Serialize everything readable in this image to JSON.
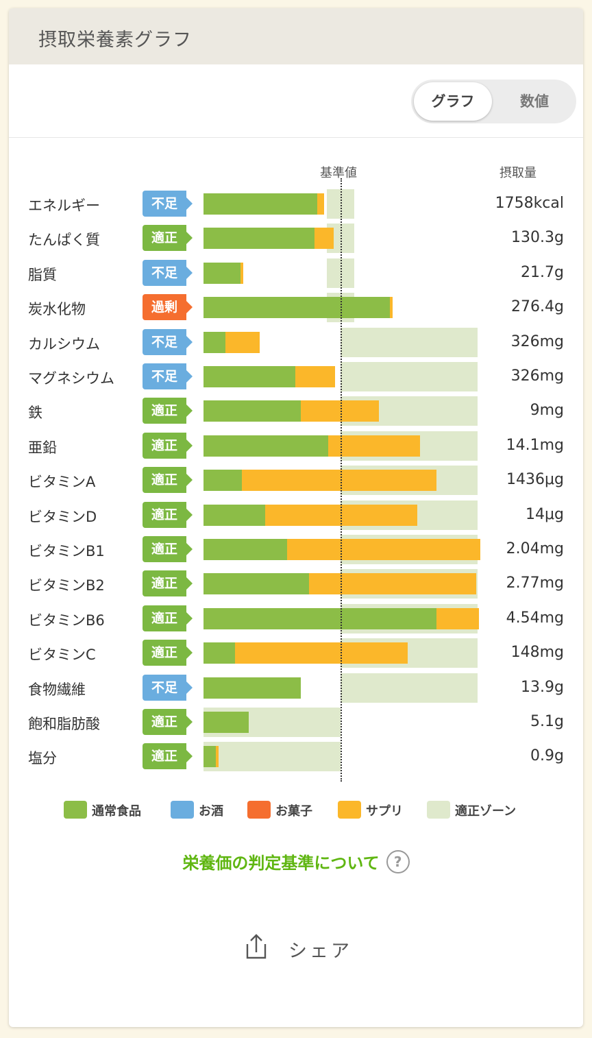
{
  "header": {
    "title": "摂取栄養素グラフ"
  },
  "toggle": {
    "graph_label": "グラフ",
    "numbers_label": "数値"
  },
  "chart_header": {
    "reference_label": "基準値",
    "intake_label": "摂取量"
  },
  "colors": {
    "normal_food": "#8cbd47",
    "alcohol": "#6aaddf",
    "snacks": "#f56e2f",
    "supplement": "#fbb72a",
    "proper_zone": "#dfe9cc",
    "status_shortage": "#6aaddf",
    "status_proper": "#7cb842",
    "status_excess": "#f56e2f"
  },
  "chart_data": {
    "type": "bar",
    "orientation": "horizontal",
    "stacked": true,
    "reference_line": "基準値",
    "series": [
      {
        "name": "通常食品",
        "color": "#8cbd47"
      },
      {
        "name": "サプリ",
        "color": "#fbb72a"
      }
    ],
    "nutrients": [
      {
        "name": "エネルギー",
        "status": "不足",
        "status_type": "shortage",
        "intake": "1758kcal",
        "food_pct": 83,
        "supp_pct": 5,
        "zone": [
          90,
          110
        ]
      },
      {
        "name": "たんぱく質",
        "status": "適正",
        "status_type": "proper",
        "intake": "130.3g",
        "food_pct": 81,
        "supp_pct": 14,
        "zone": [
          90,
          110
        ]
      },
      {
        "name": "脂質",
        "status": "不足",
        "status_type": "shortage",
        "intake": "21.7g",
        "food_pct": 27,
        "supp_pct": 2,
        "zone": [
          90,
          110
        ]
      },
      {
        "name": "炭水化物",
        "status": "過剰",
        "status_type": "excess",
        "intake": "276.4g",
        "food_pct": 136,
        "supp_pct": 2,
        "zone": [
          90,
          110
        ]
      },
      {
        "name": "カルシウム",
        "status": "不足",
        "status_type": "shortage",
        "intake": "326mg",
        "food_pct": 16,
        "supp_pct": 25,
        "zone": [
          100,
          200
        ]
      },
      {
        "name": "マグネシウム",
        "status": "不足",
        "status_type": "shortage",
        "intake": "326mg",
        "food_pct": 67,
        "supp_pct": 29,
        "zone": [
          100,
          200
        ]
      },
      {
        "name": "鉄",
        "status": "適正",
        "status_type": "proper",
        "intake": "9mg",
        "food_pct": 71,
        "supp_pct": 57,
        "zone": [
          100,
          200
        ]
      },
      {
        "name": "亜鉛",
        "status": "適正",
        "status_type": "proper",
        "intake": "14.1mg",
        "food_pct": 91,
        "supp_pct": 67,
        "zone": [
          100,
          200
        ]
      },
      {
        "name": "ビタミンA",
        "status": "適正",
        "status_type": "proper",
        "intake": "1436μg",
        "food_pct": 28,
        "supp_pct": 142,
        "zone": [
          100,
          200
        ]
      },
      {
        "name": "ビタミンD",
        "status": "適正",
        "status_type": "proper",
        "intake": "14μg",
        "food_pct": 45,
        "supp_pct": 111,
        "zone": [
          100,
          200
        ]
      },
      {
        "name": "ビタミンB1",
        "status": "適正",
        "status_type": "proper",
        "intake": "2.04mg",
        "food_pct": 61,
        "supp_pct": 141,
        "zone": [
          100,
          200
        ]
      },
      {
        "name": "ビタミンB2",
        "status": "適正",
        "status_type": "proper",
        "intake": "2.77mg",
        "food_pct": 77,
        "supp_pct": 122,
        "zone": [
          100,
          200
        ]
      },
      {
        "name": "ビタミンB6",
        "status": "適正",
        "status_type": "proper",
        "intake": "4.54mg",
        "food_pct": 170,
        "supp_pct": 31,
        "zone": [
          100,
          200
        ]
      },
      {
        "name": "ビタミンC",
        "status": "適正",
        "status_type": "proper",
        "intake": "148mg",
        "food_pct": 23,
        "supp_pct": 126,
        "zone": [
          100,
          200
        ]
      },
      {
        "name": "食物繊維",
        "status": "不足",
        "status_type": "shortage",
        "intake": "13.9g",
        "food_pct": 71,
        "supp_pct": 0,
        "zone": [
          100,
          200
        ]
      },
      {
        "name": "飽和脂肪酸",
        "status": "適正",
        "status_type": "proper",
        "intake": "5.1g",
        "food_pct": 33,
        "supp_pct": 0,
        "zone": [
          0,
          100
        ]
      },
      {
        "name": "塩分",
        "status": "適正",
        "status_type": "proper",
        "intake": "0.9g",
        "food_pct": 9,
        "supp_pct": 2,
        "zone": [
          0,
          100
        ]
      }
    ]
  },
  "legend": [
    {
      "label": "通常食品",
      "color": "#8cbd47"
    },
    {
      "label": "お酒",
      "color": "#6aaddf"
    },
    {
      "label": "お菓子",
      "color": "#f56e2f"
    },
    {
      "label": "サプリ",
      "color": "#fbb72a"
    },
    {
      "label": "適正ゾーン",
      "color": "#dfe9cc"
    }
  ],
  "criteria_link": {
    "label": "栄養価の判定基準について",
    "icon": "help-icon"
  },
  "share": {
    "label": "シェア",
    "icon": "share-icon"
  }
}
